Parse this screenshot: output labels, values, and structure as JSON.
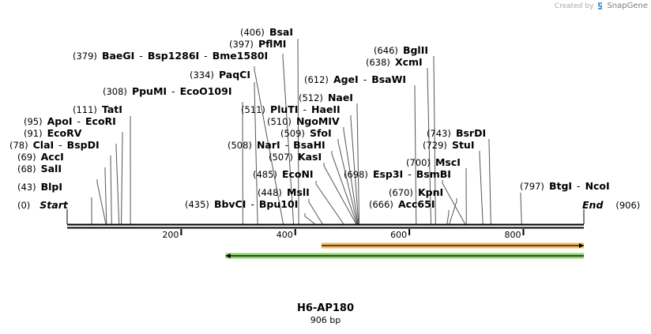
{
  "credit": {
    "prefix": "Created by",
    "brand": "SnapGene"
  },
  "sequence": {
    "name": "H6-AP180",
    "length_label": "906 bp",
    "length": 906
  },
  "ends": {
    "start": {
      "label": "Start",
      "pos": "(0)"
    },
    "end": {
      "label": "End",
      "pos": "(906)"
    }
  },
  "ruler": {
    "ticks": [
      200,
      400,
      600,
      800
    ]
  },
  "sites": [
    {
      "names": [
        "BlpI"
      ],
      "pos": 43
    },
    {
      "names": [
        "SalI"
      ],
      "pos": 68
    },
    {
      "names": [
        "AccI"
      ],
      "pos": 69
    },
    {
      "names": [
        "ClaI",
        "BspDI"
      ],
      "pos": 78
    },
    {
      "names": [
        "EcoRV"
      ],
      "pos": 91
    },
    {
      "names": [
        "ApoI",
        "EcoRI"
      ],
      "pos": 95
    },
    {
      "names": [
        "TatI"
      ],
      "pos": 111
    },
    {
      "names": [
        "PpuMI",
        "EcoO109I"
      ],
      "pos": 308
    },
    {
      "names": [
        "BaeGI",
        "Bsp1286I",
        "Bme1580I"
      ],
      "pos": 379
    },
    {
      "names": [
        "PaqCI"
      ],
      "pos": 334
    },
    {
      "names": [
        "PflMI"
      ],
      "pos": 397
    },
    {
      "names": [
        "BsaI"
      ],
      "pos": 406
    },
    {
      "names": [
        "BbvCI",
        "Bpu10I"
      ],
      "pos": 435
    },
    {
      "names": [
        "MslI"
      ],
      "pos": 448
    },
    {
      "names": [
        "EcoNI"
      ],
      "pos": 485
    },
    {
      "names": [
        "KasI"
      ],
      "pos": 507
    },
    {
      "names": [
        "NarI",
        "BsaHI"
      ],
      "pos": 508
    },
    {
      "names": [
        "SfoI"
      ],
      "pos": 509
    },
    {
      "names": [
        "NgoMIV"
      ],
      "pos": 510
    },
    {
      "names": [
        "PluTI",
        "HaeII"
      ],
      "pos": 511
    },
    {
      "names": [
        "NaeI"
      ],
      "pos": 512
    },
    {
      "names": [
        "AgeI",
        "BsaWI"
      ],
      "pos": 612
    },
    {
      "names": [
        "XcmI"
      ],
      "pos": 638
    },
    {
      "names": [
        "BglII"
      ],
      "pos": 646
    },
    {
      "names": [
        "Esp3I",
        "BsmBI"
      ],
      "pos": 698
    },
    {
      "names": [
        "Acc65I"
      ],
      "pos": 666
    },
    {
      "names": [
        "KpnI"
      ],
      "pos": 670
    },
    {
      "names": [
        "MscI"
      ],
      "pos": 700
    },
    {
      "names": [
        "StuI"
      ],
      "pos": 729
    },
    {
      "names": [
        "BsrDI"
      ],
      "pos": 743
    },
    {
      "names": [
        "BtgI",
        "NcoI"
      ],
      "pos": 797
    }
  ],
  "features": [
    {
      "direction": "forward",
      "start": 446,
      "end": 906,
      "color": "#f0a020"
    },
    {
      "direction": "reverse",
      "start": 278,
      "end": 906,
      "color": "#5cbf2e"
    }
  ]
}
